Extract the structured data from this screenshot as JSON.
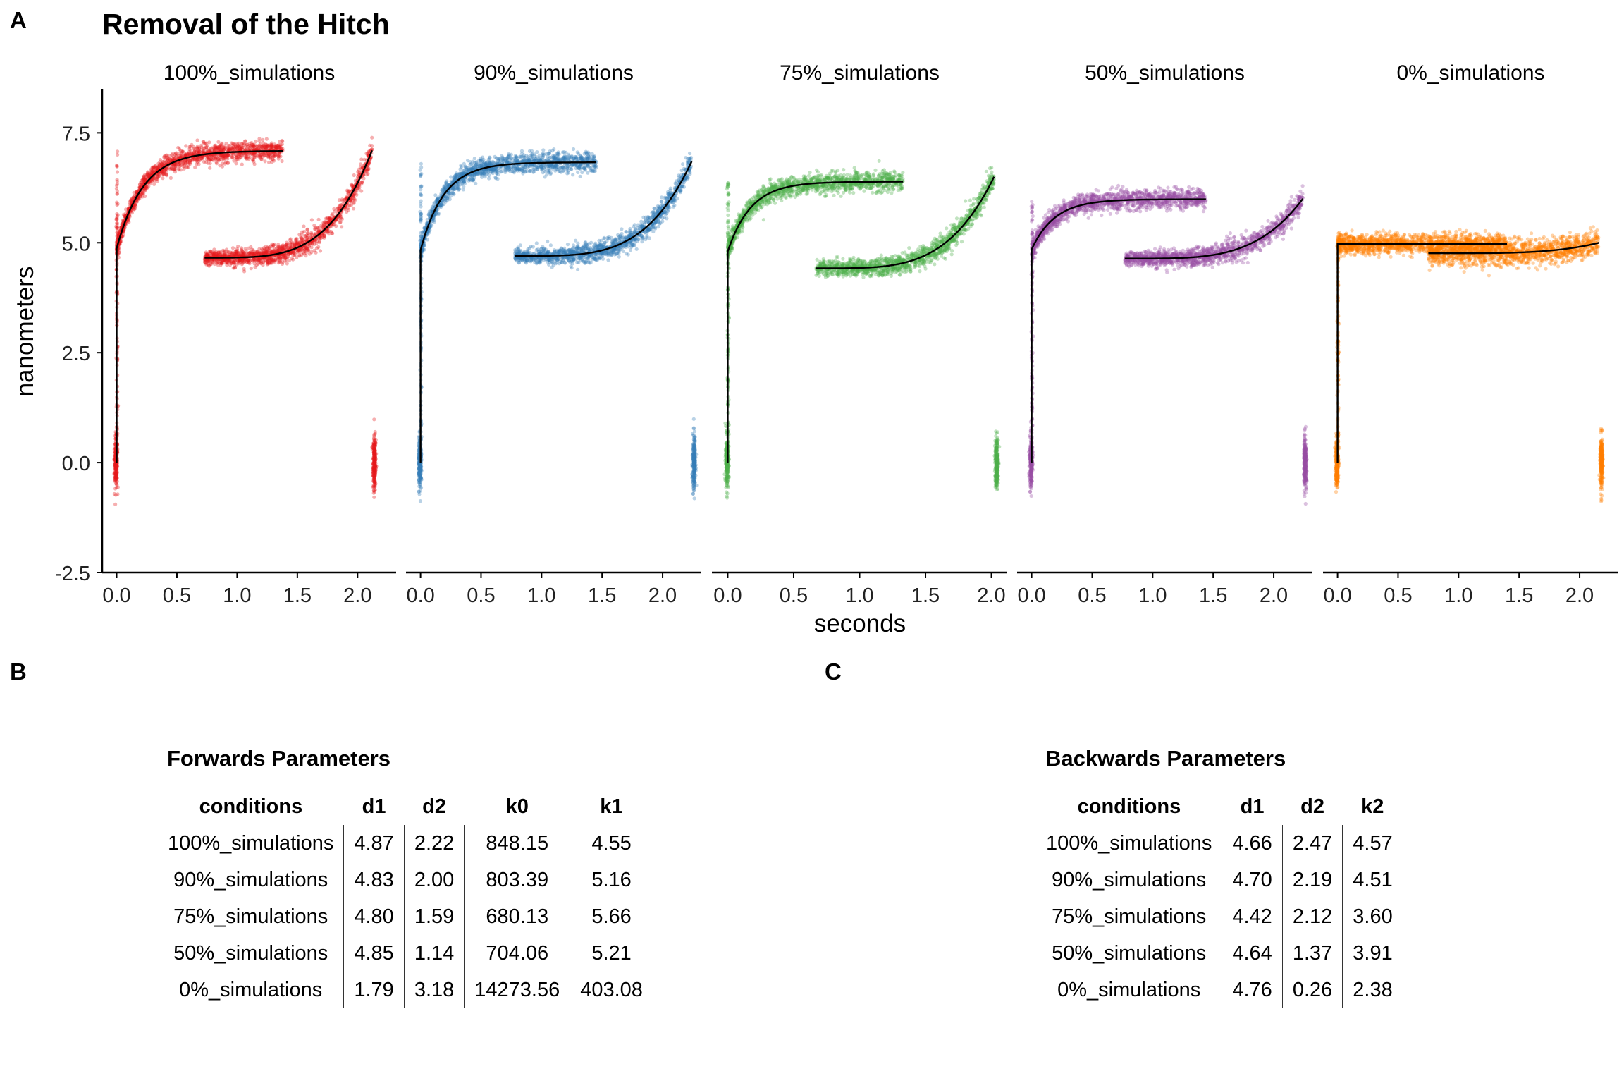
{
  "labels": {
    "a": "A",
    "b": "B",
    "c": "C"
  },
  "chart_data": {
    "type": "scatter",
    "title": "Removal of the Hitch",
    "xlabel": "seconds",
    "ylabel": "nanometers",
    "ylim": [
      -2.5,
      8.5
    ],
    "y_ticks": [
      "-2.5",
      "0.0",
      "2.5",
      "5.0",
      "7.5"
    ],
    "x_ticks": [
      "0.0",
      "0.5",
      "1.0",
      "1.5",
      "2.0"
    ],
    "facets": [
      {
        "name": "100%_simulations",
        "color": "#E41A1C",
        "xlim": [
          -0.12,
          2.32
        ],
        "d1": 4.87,
        "d2": 2.22,
        "k0": 848.15,
        "k1": 4.55,
        "bd1": 4.66,
        "bd2": 2.47,
        "k2": 4.57,
        "fwd_end": 1.38,
        "bwd_start": 0.73,
        "bwd_end": 2.12
      },
      {
        "name": "90%_simulations",
        "color": "#377EB8",
        "xlim": [
          -0.12,
          2.32
        ],
        "d1": 4.83,
        "d2": 2.0,
        "k0": 803.39,
        "k1": 5.16,
        "bd1": 4.7,
        "bd2": 2.19,
        "k2": 4.51,
        "fwd_end": 1.45,
        "bwd_start": 0.78,
        "bwd_end": 2.24
      },
      {
        "name": "75%_simulations",
        "color": "#4DAF4A",
        "xlim": [
          -0.12,
          2.12
        ],
        "d1": 4.8,
        "d2": 1.59,
        "k0": 680.13,
        "k1": 5.66,
        "bd1": 4.42,
        "bd2": 2.12,
        "k2": 3.6,
        "fwd_end": 1.33,
        "bwd_start": 0.67,
        "bwd_end": 2.02
      },
      {
        "name": "50%_simulations",
        "color": "#984EA3",
        "xlim": [
          -0.12,
          2.32
        ],
        "d1": 4.85,
        "d2": 1.14,
        "k0": 704.06,
        "k1": 5.21,
        "bd1": 4.64,
        "bd2": 1.37,
        "k2": 3.91,
        "fwd_end": 1.44,
        "bwd_start": 0.77,
        "bwd_end": 2.24
      },
      {
        "name": "0%_simulations",
        "color": "#FF7F00",
        "xlim": [
          -0.12,
          2.32
        ],
        "d1": 1.79,
        "d2": 3.18,
        "k0": 14273.56,
        "k1": 403.08,
        "bd1": 4.76,
        "bd2": 0.26,
        "k2": 2.38,
        "fwd_end": 1.4,
        "bwd_start": 0.75,
        "bwd_end": 2.16
      }
    ]
  },
  "forwards_table": {
    "title": "Forwards Parameters",
    "columns": [
      "conditions",
      "d1",
      "d2",
      "k0",
      "k1"
    ],
    "rows": [
      [
        "100%_simulations",
        "4.87",
        "2.22",
        "848.15",
        "4.55"
      ],
      [
        "90%_simulations",
        "4.83",
        "2.00",
        "803.39",
        "5.16"
      ],
      [
        "75%_simulations",
        "4.80",
        "1.59",
        "680.13",
        "5.66"
      ],
      [
        "50%_simulations",
        "4.85",
        "1.14",
        "704.06",
        "5.21"
      ],
      [
        "0%_simulations",
        "1.79",
        "3.18",
        "14273.56",
        "403.08"
      ]
    ]
  },
  "backwards_table": {
    "title": "Backwards Parameters",
    "columns": [
      "conditions",
      "d1",
      "d2",
      "k2"
    ],
    "rows": [
      [
        "100%_simulations",
        "4.66",
        "2.47",
        "4.57"
      ],
      [
        "90%_simulations",
        "4.70",
        "2.19",
        "4.51"
      ],
      [
        "75%_simulations",
        "4.42",
        "2.12",
        "3.60"
      ],
      [
        "50%_simulations",
        "4.64",
        "1.37",
        "3.91"
      ],
      [
        "0%_simulations",
        "4.76",
        "0.26",
        "2.38"
      ]
    ]
  }
}
